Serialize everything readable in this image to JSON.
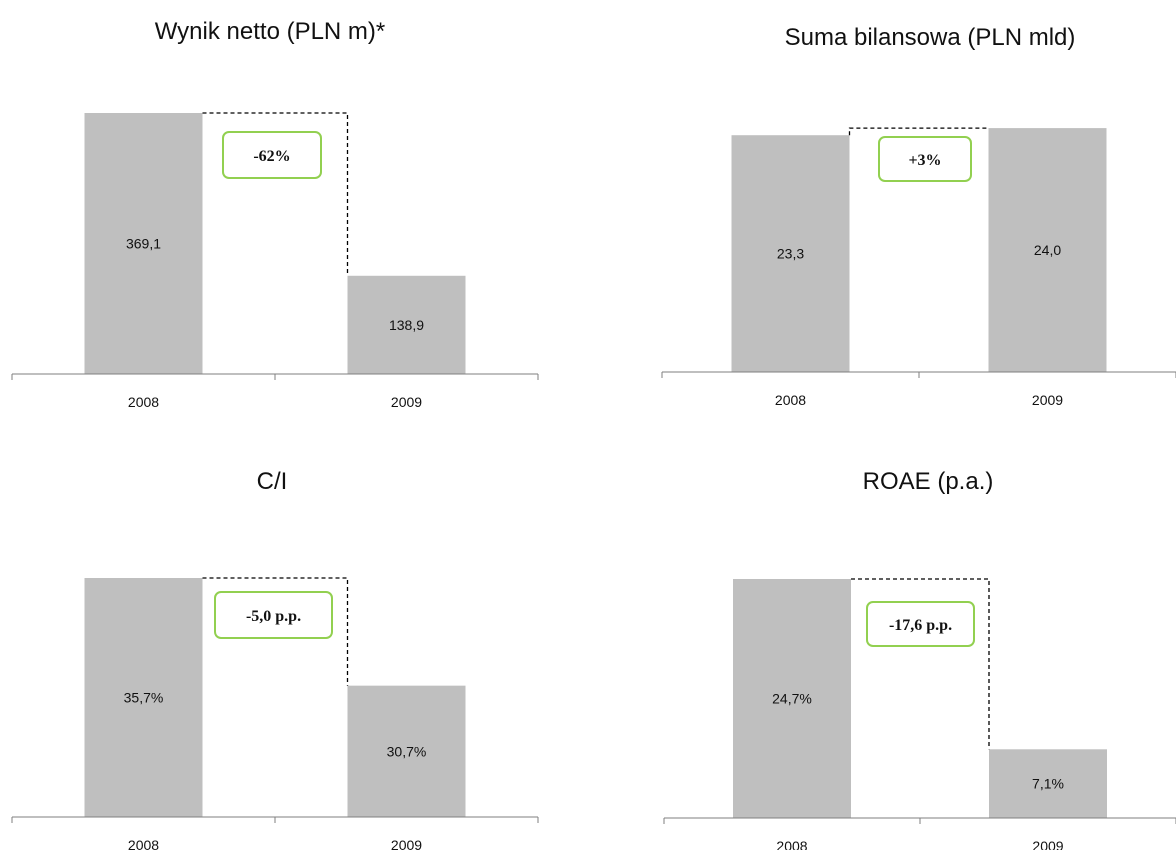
{
  "colors": {
    "bar": "#bfbfbf",
    "accent": "#92d050",
    "axis": "#7f7f7f"
  },
  "chart_data": [
    {
      "type": "bar",
      "title": "Wynik netto (PLN m)*",
      "categories": [
        "2008",
        "2009"
      ],
      "values": [
        369.1,
        138.9
      ],
      "value_labels": [
        "369,1",
        "138,9"
      ],
      "change_label": "-62%",
      "ylim": [
        0,
        369.1
      ]
    },
    {
      "type": "bar",
      "title": "Suma bilansowa (PLN mld)",
      "categories": [
        "2008",
        "2009"
      ],
      "values": [
        23.3,
        24.0
      ],
      "value_labels": [
        "23,3",
        "24,0"
      ],
      "change_label": "+3%",
      "ylim": [
        0,
        24.6
      ]
    },
    {
      "type": "bar",
      "title": "C/I",
      "categories": [
        "2008",
        "2009"
      ],
      "values": [
        35.7,
        30.7
      ],
      "value_labels": [
        "35,7%",
        "30,7%"
      ],
      "change_label": "-5,0 p.p.",
      "ylim": [
        0,
        35.7
      ],
      "y_baseline": 24.6
    },
    {
      "type": "bar",
      "title": "ROAE (p.a.)",
      "categories": [
        "2008",
        "2009"
      ],
      "values": [
        24.7,
        7.1
      ],
      "value_labels": [
        "24,7%",
        "7,1%"
      ],
      "change_label": "-17,6 p.p.",
      "ylim": [
        0,
        24.7
      ]
    }
  ]
}
